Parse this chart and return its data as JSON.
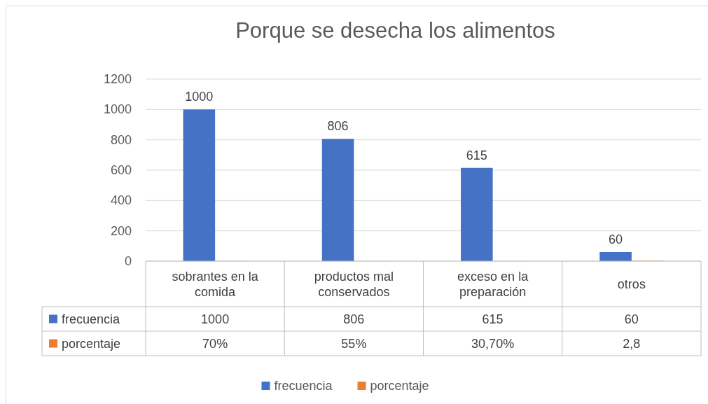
{
  "chart_data": {
    "type": "bar",
    "title": "Porque se desecha los alimentos",
    "categories": [
      "sobrantes en la comida",
      "productos mal conservados",
      "exceso en la preparación",
      "otros"
    ],
    "series": [
      {
        "name": "frecuencia",
        "color": "#4472c4",
        "values": [
          1000,
          806,
          615,
          60
        ],
        "data_labels": true,
        "value_labels": [
          "1000",
          "806",
          "615",
          "60"
        ]
      },
      {
        "name": "porcentaje",
        "color": "#ed7d31",
        "values": [
          0.7,
          0.55,
          0.307,
          2.8
        ],
        "value_labels": [
          "70%",
          "55%",
          "30,70%",
          "2,8"
        ]
      }
    ],
    "ylim": [
      0,
      1200
    ],
    "yticks": [
      0,
      200,
      400,
      600,
      800,
      1000,
      1200
    ],
    "grid": true,
    "legend": "bottom"
  }
}
